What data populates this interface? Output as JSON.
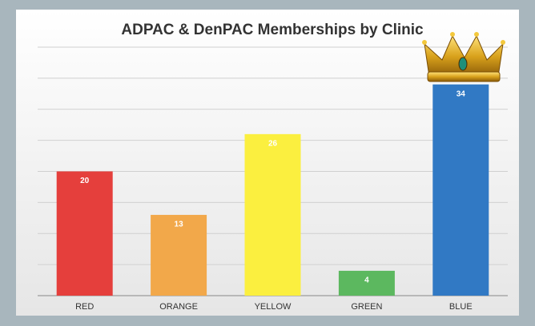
{
  "chart_data": {
    "type": "bar",
    "title": "ADPAC & DenPAC Memberships by Clinic",
    "categories": [
      "RED",
      "ORANGE",
      "YELLOW",
      "GREEN",
      "BLUE"
    ],
    "values": [
      20,
      13,
      26,
      4,
      34
    ],
    "colors": [
      "#e53f3c",
      "#f2a84a",
      "#fbef3f",
      "#5cb85f",
      "#3179c4"
    ],
    "ylim": [
      0,
      40
    ],
    "yticks": [
      0,
      5,
      10,
      15,
      20,
      25,
      30,
      35,
      40
    ],
    "grid": true
  }
}
